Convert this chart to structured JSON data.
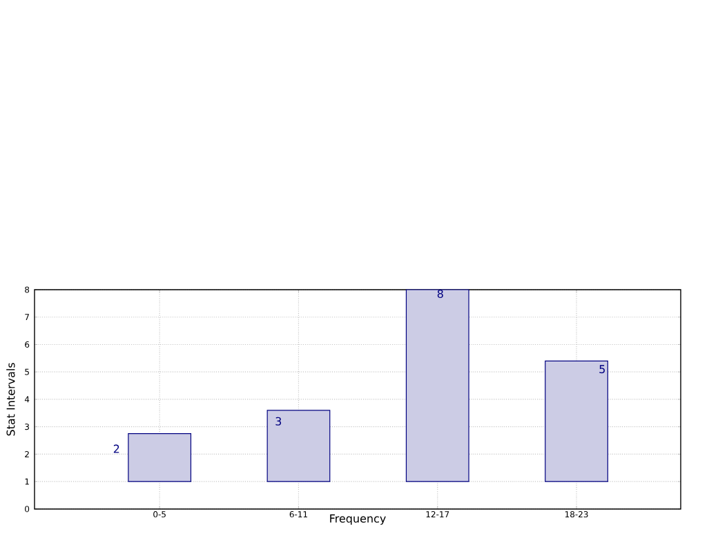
{
  "chart_data": {
    "type": "bar",
    "xlabel": "Frequency",
    "ylabel": "Stat Intervals",
    "categories": [
      "0-5",
      "6-11",
      "12-17",
      "18-23"
    ],
    "base": [
      1,
      1,
      1,
      1
    ],
    "values": [
      1.75,
      2.6,
      7,
      4.4
    ],
    "color": "#ccccE5",
    "ylim": [
      0,
      8
    ],
    "yticks": [
      0,
      1,
      2,
      3,
      4,
      5,
      6,
      7,
      8
    ],
    "grid": true,
    "annotations": [
      "2",
      "3",
      "8",
      "5"
    ]
  }
}
